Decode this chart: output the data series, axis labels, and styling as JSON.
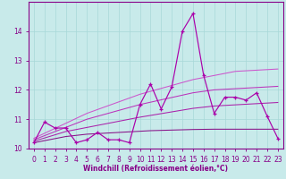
{
  "x": [
    0,
    1,
    2,
    3,
    4,
    5,
    6,
    7,
    8,
    9,
    10,
    11,
    12,
    13,
    14,
    15,
    16,
    17,
    18,
    19,
    20,
    21,
    22,
    23
  ],
  "main_line": [
    10.2,
    10.9,
    10.7,
    10.7,
    10.2,
    10.3,
    10.55,
    10.3,
    10.3,
    10.2,
    11.5,
    12.2,
    11.35,
    12.1,
    14.0,
    14.6,
    12.5,
    11.2,
    11.75,
    11.75,
    11.65,
    11.9,
    11.1,
    10.35
  ],
  "reg_line1": [
    10.35,
    10.52,
    10.69,
    10.86,
    11.03,
    11.2,
    11.33,
    11.46,
    11.59,
    11.72,
    11.85,
    11.95,
    12.05,
    12.15,
    12.25,
    12.35,
    12.42,
    12.49,
    12.56,
    12.63,
    12.65,
    12.67,
    12.69,
    12.71
  ],
  "reg_line2": [
    10.3,
    10.44,
    10.58,
    10.72,
    10.86,
    11.0,
    11.1,
    11.2,
    11.3,
    11.4,
    11.5,
    11.58,
    11.66,
    11.74,
    11.82,
    11.9,
    11.95,
    12.0,
    12.02,
    12.04,
    12.06,
    12.08,
    12.1,
    12.12
  ],
  "reg_line3": [
    10.25,
    10.36,
    10.47,
    10.58,
    10.65,
    10.72,
    10.79,
    10.86,
    10.93,
    11.0,
    11.07,
    11.13,
    11.19,
    11.25,
    11.31,
    11.37,
    11.41,
    11.45,
    11.47,
    11.49,
    11.51,
    11.53,
    11.55,
    11.57
  ],
  "reg_line4": [
    10.2,
    10.27,
    10.34,
    10.41,
    10.45,
    10.49,
    10.51,
    10.53,
    10.55,
    10.57,
    10.59,
    10.61,
    10.62,
    10.63,
    10.64,
    10.65,
    10.655,
    10.66,
    10.66,
    10.66,
    10.66,
    10.66,
    10.66,
    10.66
  ],
  "main_color": "#aa00aa",
  "reg_color1": "#cc55cc",
  "reg_color2": "#bb33bb",
  "reg_color3": "#aa22aa",
  "reg_color4": "#881188",
  "bg_color": "#c8eaea",
  "grid_color": "#a8d8d8",
  "spine_color": "#880088",
  "text_color": "#880088",
  "xlabel": "Windchill (Refroidissement éolien,°C)",
  "ylim": [
    10.0,
    15.0
  ],
  "xlim": [
    -0.5,
    23.5
  ],
  "yticks": [
    10,
    11,
    12,
    13,
    14
  ],
  "xticks": [
    0,
    1,
    2,
    3,
    4,
    5,
    6,
    7,
    8,
    9,
    10,
    11,
    12,
    13,
    14,
    15,
    16,
    17,
    18,
    19,
    20,
    21,
    22,
    23
  ],
  "tick_fontsize": 5.5,
  "xlabel_fontsize": 5.5
}
